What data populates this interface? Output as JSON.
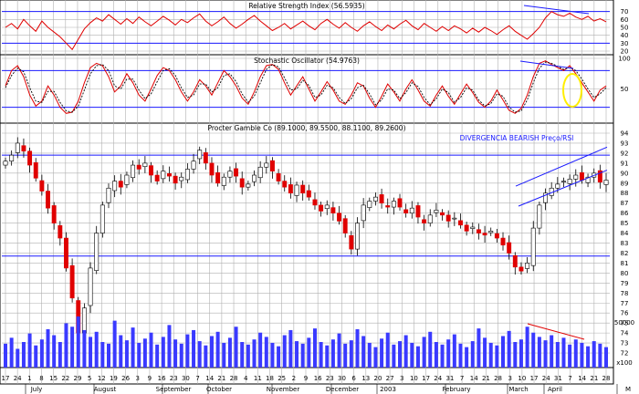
{
  "colors": {
    "grid": "#b0b0b0",
    "guide": "#1a1aff",
    "up": "#ffffff",
    "down": "#e00000",
    "rsi": "#e00000",
    "volume": "#3a3aff",
    "highlight": "#ffee00"
  },
  "chart_data": [
    {
      "type": "line",
      "title": "Relative Strength Index (56.5935)",
      "ylim": [
        20,
        80
      ],
      "yticks": [
        "70",
        "60",
        "50",
        "40",
        "30",
        "20"
      ],
      "guides": [
        70,
        30
      ],
      "series": [
        {
          "name": "",
          "values": [
            50,
            55,
            48,
            60,
            52,
            45,
            58,
            50,
            44,
            38,
            30,
            22,
            35,
            48,
            56,
            62,
            58,
            66,
            60,
            54,
            61,
            55,
            63,
            57,
            52,
            58,
            64,
            59,
            53,
            60,
            56,
            62,
            67,
            58,
            52,
            57,
            63,
            55,
            49,
            54,
            60,
            65,
            58,
            52,
            46,
            50,
            55,
            48,
            53,
            58,
            52,
            47,
            55,
            60,
            54,
            49,
            56,
            50,
            45,
            52,
            57,
            51,
            46,
            53,
            48,
            54,
            59,
            52,
            47,
            55,
            50,
            45,
            51,
            46,
            52,
            48,
            43,
            49,
            44,
            50,
            46,
            41,
            47,
            52,
            45,
            40,
            35,
            42,
            50,
            62,
            70,
            66,
            64,
            68,
            63,
            60,
            64,
            58,
            61,
            57
          ]
        }
      ]
    },
    {
      "type": "line",
      "title": "Stochastic Oscillator (54.9763)",
      "ylim": [
        0,
        100
      ],
      "yticks": [
        "100",
        "50"
      ],
      "guides": [
        80,
        20
      ],
      "series": [
        {
          "name": "",
          "values": [
            55,
            80,
            88,
            70,
            40,
            22,
            30,
            55,
            40,
            20,
            10,
            12,
            30,
            60,
            85,
            92,
            88,
            70,
            45,
            55,
            75,
            60,
            40,
            30,
            50,
            72,
            85,
            80,
            65,
            45,
            30,
            45,
            65,
            55,
            40,
            60,
            80,
            70,
            55,
            35,
            25,
            45,
            70,
            88,
            90,
            82,
            60,
            40,
            55,
            70,
            50,
            30,
            45,
            62,
            48,
            30,
            25,
            40,
            60,
            55,
            35,
            20,
            38,
            58,
            45,
            30,
            50,
            65,
            48,
            30,
            22,
            40,
            55,
            38,
            25,
            42,
            58,
            44,
            28,
            20,
            30,
            48,
            32,
            15,
            10,
            18,
            40,
            70,
            92,
            96,
            90,
            85,
            80,
            88,
            75,
            60,
            45,
            30,
            48,
            55
          ]
        },
        {
          "name": "",
          "values": [
            52,
            72,
            84,
            78,
            52,
            30,
            28,
            46,
            46,
            28,
            14,
            12,
            22,
            48,
            75,
            88,
            90,
            80,
            55,
            50,
            66,
            66,
            48,
            34,
            42,
            62,
            80,
            83,
            72,
            52,
            36,
            40,
            58,
            58,
            45,
            52,
            72,
            75,
            62,
            42,
            28,
            38,
            60,
            82,
            90,
            86,
            68,
            48,
            50,
            64,
            56,
            36,
            40,
            56,
            52,
            36,
            26,
            34,
            52,
            56,
            42,
            24,
            32,
            50,
            48,
            34,
            44,
            60,
            54,
            36,
            24,
            34,
            50,
            44,
            28,
            36,
            52,
            48,
            32,
            22,
            26,
            42,
            38,
            20,
            12,
            14,
            32,
            60,
            84,
            94,
            92,
            87,
            82,
            85,
            80,
            66,
            50,
            36,
            42,
            52
          ]
        }
      ]
    },
    {
      "type": "candlestick",
      "title": "Procter   Gamble Co (89.1000, 89.5500, 88.1100, 89.2600)",
      "annotation": "DIVERGENCIA BEARISH Preço/RSI",
      "ylim": [
        71,
        94
      ],
      "yticks": [
        "94",
        "93",
        "92",
        "91",
        "90",
        "89",
        "88",
        "87",
        "86",
        "85",
        "84",
        "83",
        "82",
        "81",
        "80",
        "79",
        "78",
        "77",
        "76",
        "75",
        "74",
        "73",
        "72"
      ],
      "guides": [
        91.8,
        81.7
      ],
      "close": [
        91.2,
        91.8,
        93.0,
        92.2,
        90.8,
        89.5,
        88.2,
        86.5,
        85.0,
        83.5,
        80.5,
        77.5,
        74.0,
        76.5,
        80.5,
        84.0,
        86.8,
        88.5,
        89.2,
        88.6,
        89.8,
        90.8,
        90.4,
        91.0,
        89.8,
        89.2,
        90.2,
        89.7,
        89.0,
        89.6,
        90.4,
        91.2,
        92.3,
        91.0,
        89.8,
        89.0,
        89.6,
        90.2,
        89.7,
        88.6,
        88.9,
        89.8,
        90.6,
        91.0,
        90.2,
        89.2,
        88.6,
        88.0,
        88.8,
        88.0,
        87.6,
        86.8,
        86.2,
        86.8,
        86.0,
        85.2,
        84.0,
        82.4,
        85.0,
        86.8,
        87.2,
        87.6,
        87.0,
        86.6,
        87.2,
        86.6,
        86.0,
        86.5,
        85.6,
        85.0,
        85.8,
        86.3,
        85.8,
        85.2,
        85.5,
        84.8,
        84.2,
        84.6,
        84.0,
        83.8,
        84.2,
        83.5,
        82.8,
        82.0,
        80.6,
        80.2,
        81.0,
        84.5,
        86.8,
        88.0,
        88.5,
        88.9,
        89.2,
        89.4,
        89.8,
        89.3,
        89.6,
        90.0,
        89.1,
        89.3
      ],
      "x_labels": [
        "17",
        "24",
        "1",
        "8",
        "15",
        "22",
        "29",
        "5",
        "12",
        "19",
        "26",
        "3",
        "9",
        "16",
        "23",
        "30",
        "7",
        "14",
        "21",
        "28",
        "4",
        "11",
        "18",
        "25",
        "2",
        "9",
        "16",
        "23",
        "30",
        "6",
        "13",
        "20",
        "27",
        "3",
        "10",
        "17",
        "24",
        "31",
        "7",
        "14",
        "21",
        "28",
        "3",
        "10",
        "17",
        "24",
        "31",
        "7",
        "14",
        "21",
        "28"
      ],
      "month_labels": [
        "July",
        "August",
        "September",
        "October",
        "November",
        "December",
        "2003",
        "February",
        "March",
        "April",
        "M"
      ]
    },
    {
      "type": "bar",
      "title": "Volume",
      "yticks": [
        "50000",
        "x100"
      ],
      "values": [
        28,
        35,
        22,
        30,
        40,
        26,
        33,
        45,
        38,
        30,
        52,
        48,
        60,
        44,
        36,
        42,
        30,
        28,
        55,
        38,
        32,
        47,
        29,
        34,
        41,
        27,
        36,
        50,
        33,
        28,
        39,
        44,
        31,
        26,
        37,
        42,
        29,
        35,
        48,
        30,
        27,
        33,
        41,
        36,
        29,
        25,
        38,
        44,
        31,
        28,
        35,
        46,
        30,
        26,
        33,
        40,
        28,
        32,
        45,
        37,
        29,
        24,
        34,
        41,
        27,
        31,
        38,
        29,
        25,
        36,
        42,
        30,
        27,
        33,
        39,
        28,
        24,
        31,
        46,
        35,
        29,
        26,
        37,
        43,
        30,
        33,
        48,
        41,
        36,
        32,
        38,
        30,
        35,
        27,
        33,
        29,
        25,
        31,
        28,
        24
      ],
      "trendline": "declining"
    }
  ]
}
